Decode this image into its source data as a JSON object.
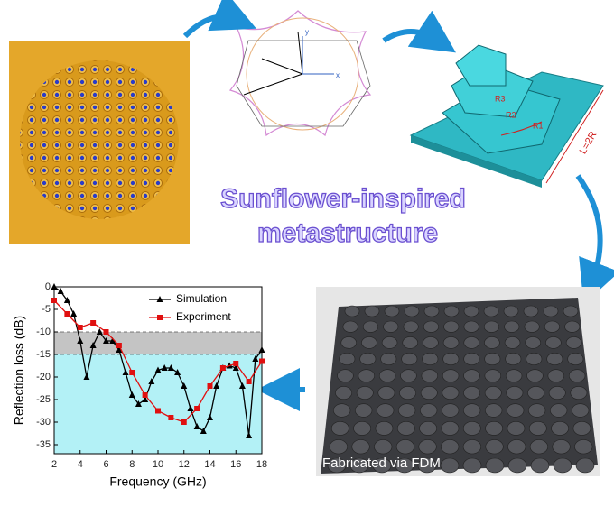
{
  "headline": {
    "line1": "Sunflower-inspired",
    "line2": "metastructure"
  },
  "photo_caption": "Fabricated via FDM",
  "model_labels": {
    "length": "L=2R",
    "radius_1": "R1",
    "radius_2": "R2",
    "radius_3": "R3"
  },
  "lattice_labels": {
    "x_axis": "x",
    "y_axis": "y"
  },
  "chart_data": {
    "type": "line",
    "xlabel": "Frequency (GHz)",
    "ylabel": "Reflection loss (dB)",
    "xlim": [
      2,
      18
    ],
    "xticks": [
      2,
      4,
      6,
      8,
      10,
      12,
      14,
      16,
      18
    ],
    "ylim": [
      -37,
      0
    ],
    "yticks": [
      0,
      -5,
      -10,
      -15,
      -20,
      -25,
      -30,
      -35
    ],
    "bands": [
      {
        "from": -10,
        "to": -15,
        "color": "#c4c4c4"
      },
      {
        "from": -15,
        "to": -37,
        "color": "#b3f1f6"
      }
    ],
    "legend": "upper right",
    "series": [
      {
        "name": "Simulation",
        "color": "#000000",
        "marker": "triangle",
        "x": [
          2,
          2.5,
          3,
          3.5,
          4,
          4.5,
          5,
          5.5,
          6,
          6.5,
          7,
          7.5,
          8,
          8.5,
          9,
          9.5,
          10,
          10.5,
          11,
          11.5,
          12,
          12.5,
          13,
          13.5,
          14,
          14.5,
          15,
          15.5,
          16,
          16.5,
          17,
          17.5,
          18
        ],
        "values": [
          0,
          -1,
          -3,
          -6,
          -12,
          -20,
          -13,
          -10,
          -12,
          -12,
          -14,
          -19,
          -24,
          -26,
          -25,
          -21,
          -18.5,
          -18,
          -18,
          -19,
          -22,
          -27,
          -31,
          -32,
          -29,
          -22,
          -18,
          -17.5,
          -18,
          -22,
          -33,
          -16,
          -14
        ]
      },
      {
        "name": "Experiment",
        "color": "#e01010",
        "marker": "square",
        "x": [
          2,
          3,
          4,
          5,
          6,
          7,
          8,
          9,
          10,
          11,
          12,
          13,
          14,
          15,
          16,
          17,
          18
        ],
        "values": [
          -3,
          -6,
          -9,
          -8,
          -10,
          -13,
          -19,
          -24,
          -27.5,
          -29,
          -30,
          -27,
          -22,
          -18,
          -17,
          -21,
          -16.5
        ]
      }
    ]
  }
}
